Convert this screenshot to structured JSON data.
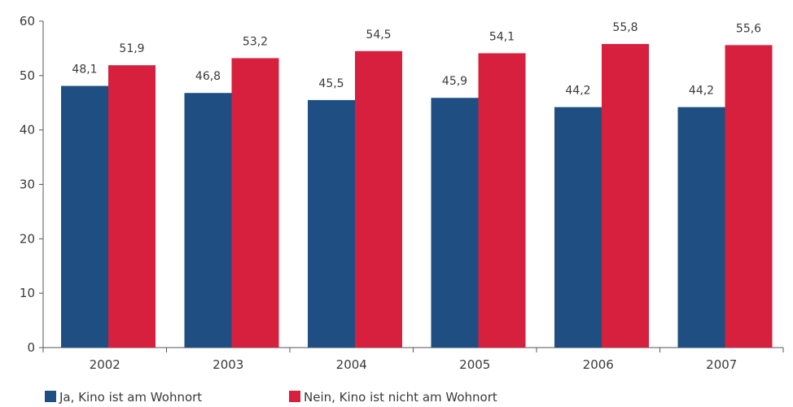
{
  "chart_data": {
    "type": "bar",
    "categories": [
      "2002",
      "2003",
      "2004",
      "2005",
      "2006",
      "2007"
    ],
    "series": [
      {
        "name": "Ja, Kino ist am Wohnort",
        "color": "#1f4e83",
        "values": [
          48.1,
          46.8,
          45.5,
          45.9,
          44.2,
          44.2
        ],
        "labels": [
          "48,1",
          "46,8",
          "45,5",
          "45,9",
          "44,2",
          "44,2"
        ]
      },
      {
        "name": "Nein, Kino ist nicht am Wohnort",
        "color": "#d6203e",
        "values": [
          51.9,
          53.2,
          54.5,
          54.1,
          55.8,
          55.6
        ],
        "labels": [
          "51,9",
          "53,2",
          "54,5",
          "54,1",
          "55,8",
          "55,6"
        ]
      }
    ],
    "ylim": [
      0,
      60
    ],
    "yticks": [
      "0",
      "10",
      "20",
      "30",
      "40",
      "50",
      "60"
    ],
    "grid": false,
    "legend_position": "bottom-left"
  }
}
